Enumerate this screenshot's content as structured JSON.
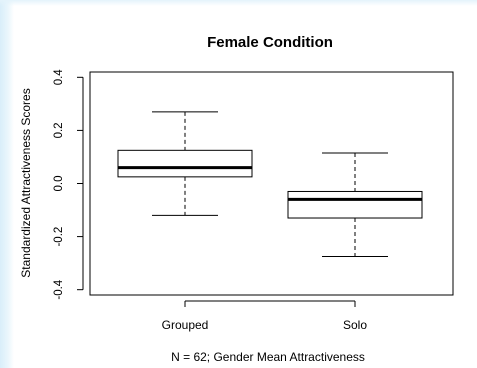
{
  "chart_data": {
    "type": "box",
    "title": "Female Condition",
    "xlabel": "N = 62; Gender Mean Attractiveness",
    "ylabel": "Standardized Attractiveness Scores",
    "ylim": [
      -0.42,
      0.42
    ],
    "yticks": [
      "-0.4",
      "-0.2",
      "0.0",
      "0.2",
      "0.4"
    ],
    "ytick_values": [
      -0.4,
      -0.2,
      0.0,
      0.2,
      0.4
    ],
    "categories": [
      "Grouped",
      "Solo"
    ],
    "boxes": [
      {
        "category": "Grouped",
        "whisker_low": -0.12,
        "q1": 0.025,
        "median": 0.06,
        "q3": 0.125,
        "whisker_high": 0.27
      },
      {
        "category": "Solo",
        "whisker_low": -0.275,
        "q1": -0.13,
        "median": -0.06,
        "q3": -0.03,
        "whisker_high": 0.115
      }
    ],
    "grid": false,
    "legend": "none"
  }
}
